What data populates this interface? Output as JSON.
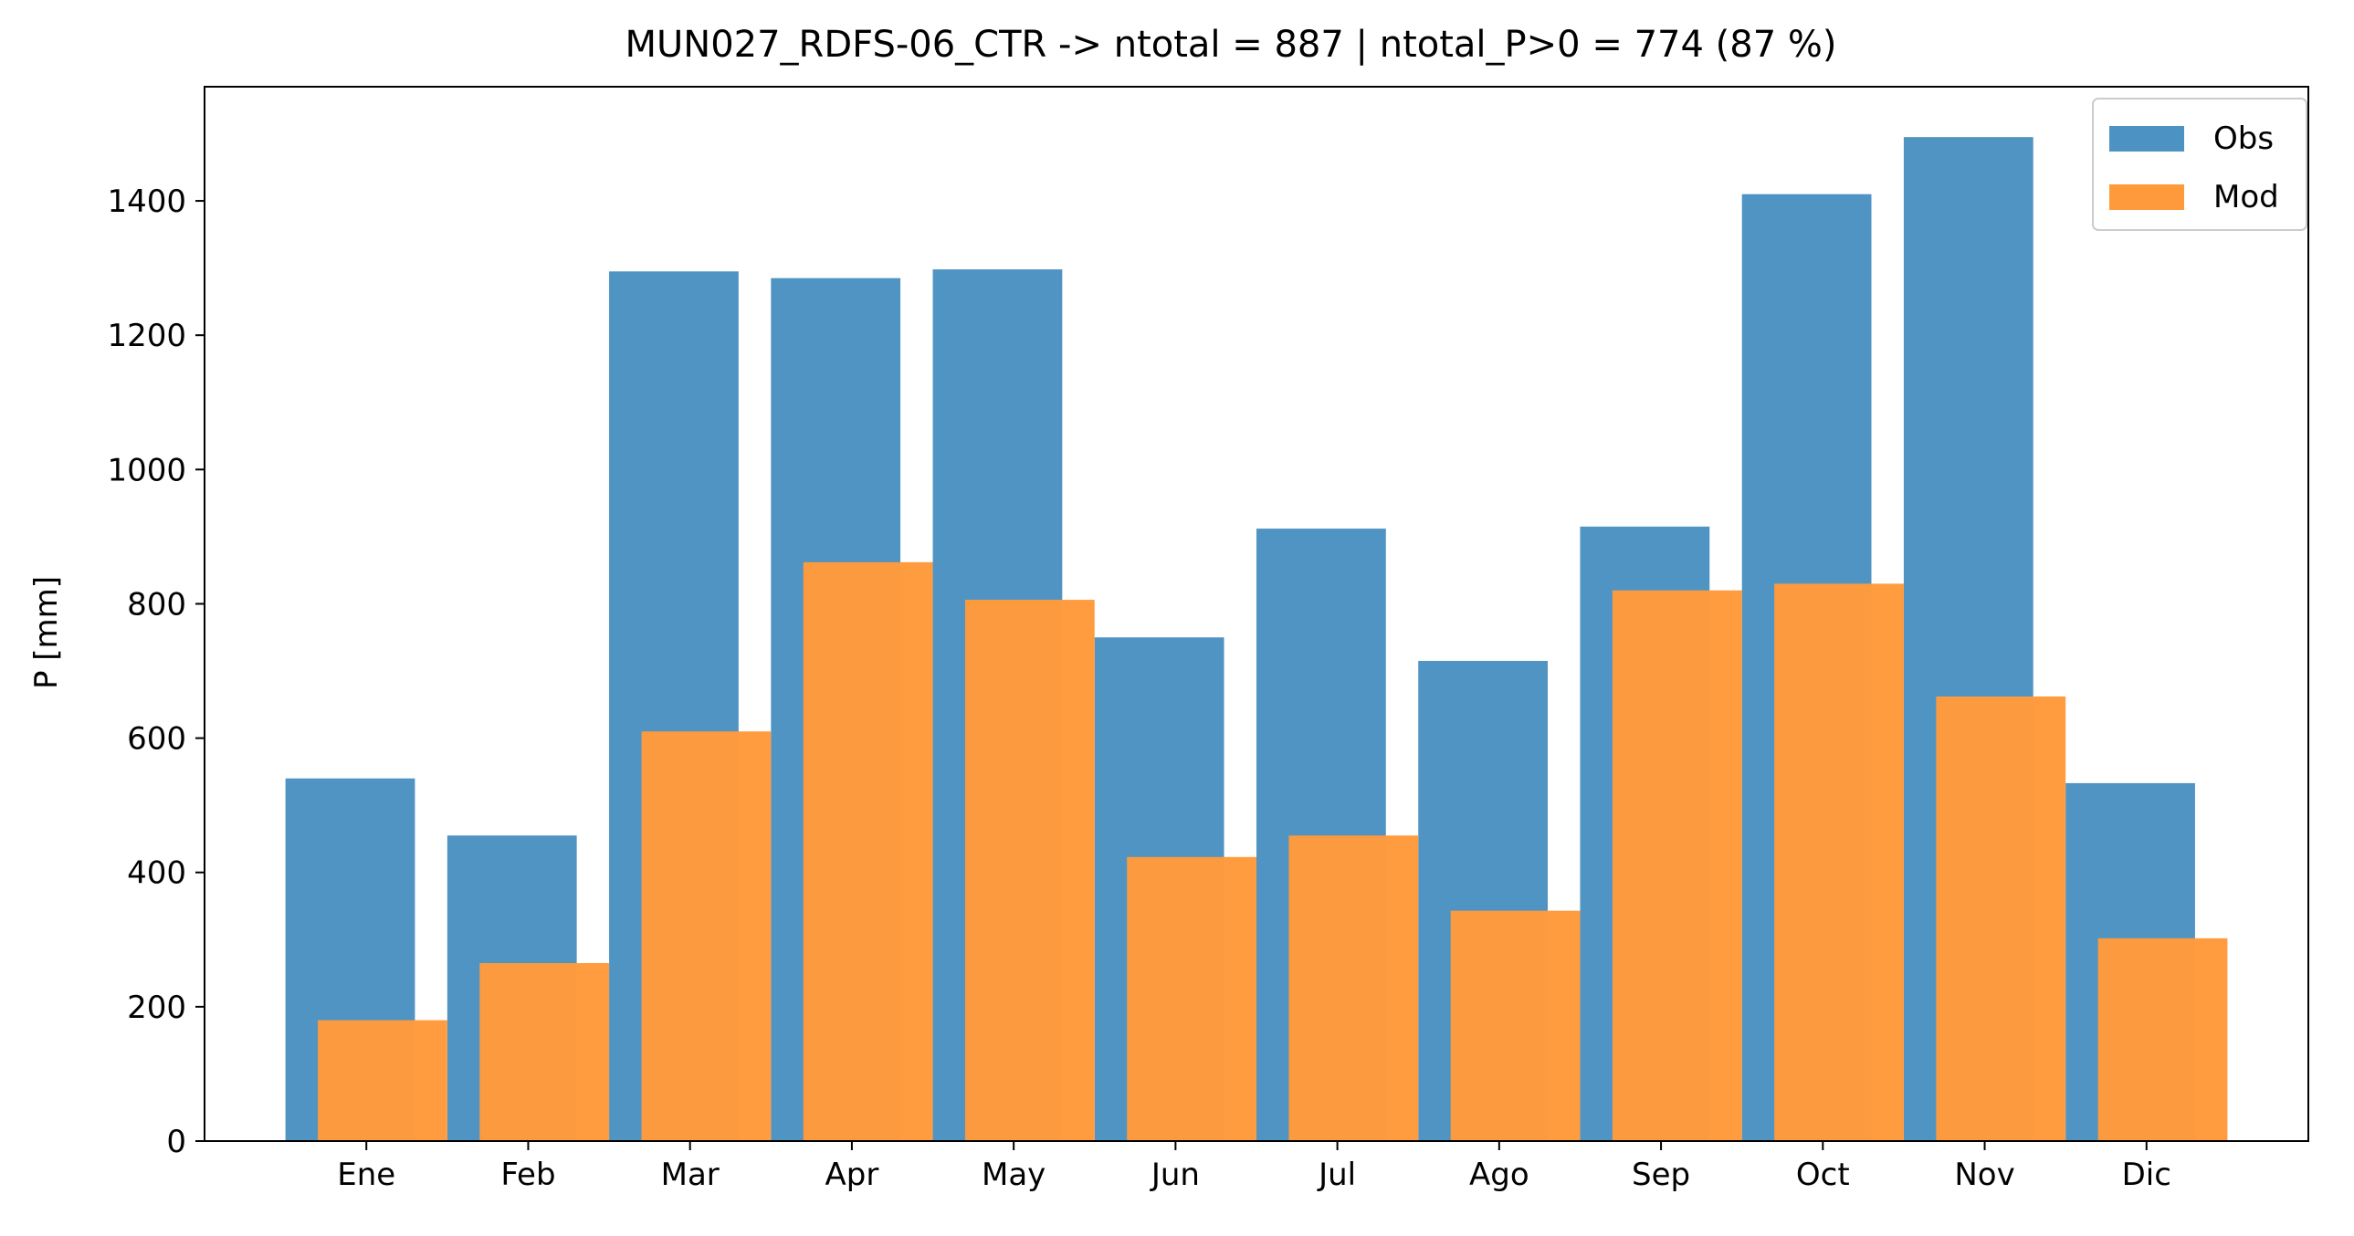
{
  "chart_data": {
    "type": "bar",
    "title": "MUN027_RDFS-06_CTR -> ntotal = 887 | ntotal_P>0 = 774 (87 %)",
    "xlabel": "",
    "ylabel": "P [mm]",
    "ylim": [
      0,
      1570
    ],
    "yticks": [
      0,
      200,
      400,
      600,
      800,
      1000,
      1200,
      1400
    ],
    "grid": false,
    "legend_position": "top-right",
    "categories": [
      "Ene",
      "Feb",
      "Mar",
      "Apr",
      "May",
      "Jun",
      "Jul",
      "Ago",
      "Sep",
      "Oct",
      "Nov",
      "Dic"
    ],
    "series": [
      {
        "name": "Obs",
        "color": "#4c92c3",
        "values": [
          540,
          455,
          1295,
          1285,
          1298,
          750,
          912,
          715,
          915,
          1410,
          1495,
          533
        ]
      },
      {
        "name": "Mod",
        "color": "#ff9a3c",
        "values": [
          180,
          265,
          610,
          862,
          806,
          423,
          455,
          343,
          820,
          830,
          662,
          302
        ]
      }
    ]
  }
}
